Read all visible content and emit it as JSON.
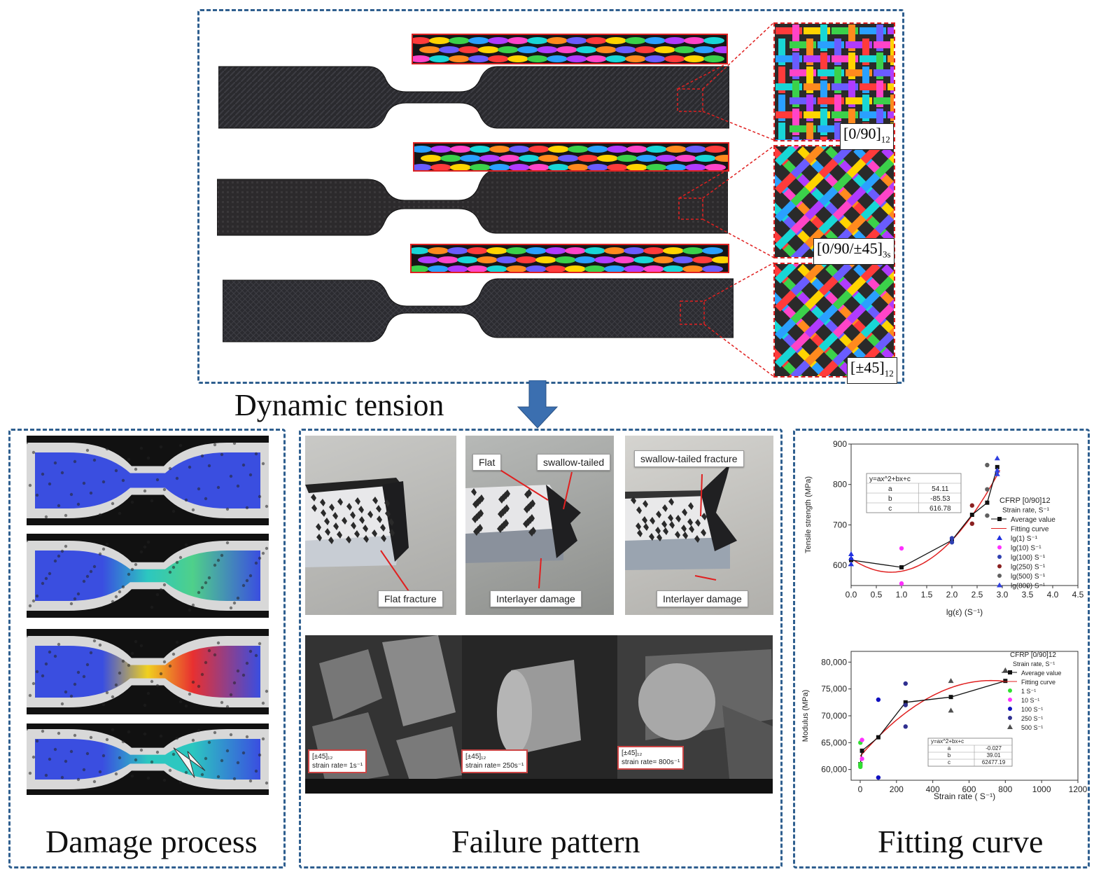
{
  "top_panel": {
    "title": "Dynamic tension",
    "specimens": [
      {
        "label_main": "[0/90]",
        "label_sub": "12"
      },
      {
        "label_main": "[0/90/±45]",
        "label_sub": "3s"
      },
      {
        "label_main": "[±45]",
        "label_sub": "12"
      }
    ]
  },
  "damage_panel": {
    "title": "Damage process"
  },
  "failure_panel": {
    "title": "Failure pattern",
    "photo_callouts": [
      "Flat fracture",
      "Flat",
      "swallow-tailed",
      "Interlayer damage",
      "swallow-tailed fracture",
      "Interlayer damage"
    ],
    "sem": [
      {
        "layup": "[±45]₁₂",
        "rate": "strain rate= 1s⁻¹"
      },
      {
        "layup": "[±45]₁₂",
        "rate": "strain rate= 250s⁻¹"
      },
      {
        "layup": "[±45]₁₂",
        "rate": "strain rate= 800s⁻¹"
      }
    ]
  },
  "fitting_panel": {
    "title": "Fitting curve"
  },
  "colors": {
    "frame": "#2f5f8f",
    "arrow": "#3b6fb0",
    "callout_line": "#e02020"
  },
  "chart_data": [
    {
      "type": "line",
      "title": "CFRP [0/90]12",
      "xlabel": "lg(ε̇) (S⁻¹)",
      "ylabel": "Tensile strength (MPa)",
      "xlim": [
        0.0,
        4.5
      ],
      "ylim": [
        550,
        900
      ],
      "xticks": [
        "0.0",
        "0.5",
        "1.0",
        "1.5",
        "2.0",
        "2.5",
        "3.0",
        "3.5",
        "4.0",
        "4.5"
      ],
      "yticks": [
        "600",
        "700",
        "800",
        "900"
      ],
      "legend_title": "CFRP [0/90]12",
      "legend_subtitle": "Strain rate, S⁻¹",
      "legend": [
        "Average value",
        "Fitting curve",
        "lg(1) S⁻¹",
        "lg(10) S⁻¹",
        "lg(100) S⁻¹",
        "lg(250) S⁻¹",
        "lg(500) S⁻¹",
        "lg(800) S⁻¹"
      ],
      "fit_table": {
        "equation": "y=ax^2+bx+c",
        "rows": [
          [
            "a",
            "54.11"
          ],
          [
            "b",
            "-85.53"
          ],
          [
            "c",
            "616.78"
          ]
        ]
      },
      "series": [
        {
          "name": "Average value",
          "x": [
            0.0,
            1.0,
            2.0,
            2.4,
            2.7,
            2.9
          ],
          "y": [
            613,
            595,
            662,
            725,
            755,
            843
          ]
        },
        {
          "name": "Fitting curve",
          "coefficients": {
            "a": 54.11,
            "b": -85.53,
            "c": 616.78
          },
          "x_range": [
            0.0,
            2.95
          ]
        },
        {
          "name": "lg(1) S⁻¹",
          "x": [
            0.0,
            0.0,
            0.0
          ],
          "y": [
            628,
            618,
            603
          ]
        },
        {
          "name": "lg(10) S⁻¹",
          "x": [
            1.0,
            1.0
          ],
          "y": [
            642,
            555
          ]
        },
        {
          "name": "lg(100) S⁻¹",
          "x": [
            2.0,
            2.0
          ],
          "y": [
            667,
            657
          ]
        },
        {
          "name": "lg(250) S⁻¹",
          "x": [
            2.4,
            2.4
          ],
          "y": [
            748,
            703
          ]
        },
        {
          "name": "lg(500) S⁻¹",
          "x": [
            2.7,
            2.7,
            2.7
          ],
          "y": [
            788,
            723,
            848
          ]
        },
        {
          "name": "lg(800) S⁻¹",
          "x": [
            2.9,
            2.9,
            2.9
          ],
          "y": [
            865,
            835,
            826
          ]
        }
      ]
    },
    {
      "type": "line",
      "title": "CFRP [0/90]12",
      "xlabel": "Strain rate ( S⁻¹)",
      "ylabel": "Modulus (MPa)",
      "xlim": [
        -50,
        1200
      ],
      "ylim": [
        58000,
        82000
      ],
      "xticks": [
        "0",
        "200",
        "400",
        "600",
        "800",
        "1000",
        "1200"
      ],
      "yticks": [
        "60,000",
        "65,000",
        "70,000",
        "75,000",
        "80,000"
      ],
      "legend_title": "CFRP [0/90]12",
      "legend_subtitle": "Strain rate, S⁻¹",
      "legend": [
        "Average value",
        "Fitting curve",
        "1 S⁻¹",
        "10 S⁻¹",
        "100 S⁻¹",
        "250 S⁻¹",
        "500 S⁻¹"
      ],
      "fit_table": {
        "equation": "y=ax^2+bx+c",
        "rows": [
          [
            "a",
            "-0.027"
          ],
          [
            "b",
            "39.01"
          ],
          [
            "c",
            "62477.19"
          ]
        ]
      },
      "series": [
        {
          "name": "Average value",
          "x": [
            1,
            10,
            100,
            250,
            500,
            800
          ],
          "y": [
            61000,
            63500,
            66000,
            72500,
            73500,
            76500
          ]
        },
        {
          "name": "Fitting curve",
          "coefficients": {
            "a": -0.027,
            "b": 39.01,
            "c": 62477.19
          },
          "x_range": [
            0,
            800
          ]
        },
        {
          "name": "1 S⁻¹",
          "x": [
            1,
            1,
            1
          ],
          "y": [
            65000,
            61000,
            60500
          ]
        },
        {
          "name": "10 S⁻¹",
          "x": [
            10,
            10
          ],
          "y": [
            65500,
            62000
          ]
        },
        {
          "name": "100 S⁻¹",
          "x": [
            100,
            100
          ],
          "y": [
            73000,
            58500
          ]
        },
        {
          "name": "250 S⁻¹",
          "x": [
            250,
            250,
            250
          ],
          "y": [
            76000,
            72000,
            68000
          ]
        },
        {
          "name": "500 S⁻¹",
          "x": [
            500,
            500,
            800
          ],
          "y": [
            76500,
            71000,
            78500
          ]
        }
      ]
    }
  ]
}
